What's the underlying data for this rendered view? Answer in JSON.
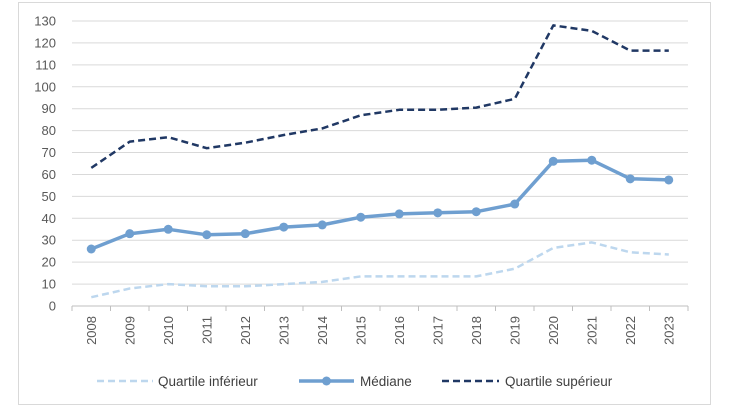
{
  "chart_data": {
    "type": "line",
    "x": [
      "2008",
      "2009",
      "2010",
      "2011",
      "2012",
      "2013",
      "2014",
      "2015",
      "2016",
      "2017",
      "2018",
      "2019",
      "2020",
      "2021",
      "2022",
      "2023"
    ],
    "ylim": [
      0,
      130
    ],
    "yticks": [
      0,
      10,
      20,
      30,
      40,
      50,
      60,
      70,
      80,
      90,
      100,
      110,
      120,
      130
    ],
    "grid": true,
    "legend_position": "bottom",
    "series": [
      {
        "name": "Quartile inférieur",
        "style": "dashed",
        "color": "#bdd7ee",
        "values": [
          4,
          8,
          10,
          9,
          9,
          10,
          11,
          13.5,
          13.5,
          13.5,
          13.5,
          17,
          26.5,
          29,
          24.5,
          23.5
        ]
      },
      {
        "name": "Médiane",
        "style": "solid-markers",
        "color": "#6f9fd0",
        "values": [
          26,
          33,
          35,
          32.5,
          33,
          36,
          37,
          40.5,
          42,
          42.5,
          43,
          46.5,
          66,
          66.5,
          58,
          57.5
        ]
      },
      {
        "name": "Quartile supérieur",
        "style": "dashed",
        "color": "#203864",
        "values": [
          63,
          75,
          77,
          72,
          74.5,
          78,
          81,
          87,
          89.5,
          89.5,
          90.5,
          94.5,
          128,
          125.5,
          116.5,
          116.5
        ]
      }
    ]
  }
}
